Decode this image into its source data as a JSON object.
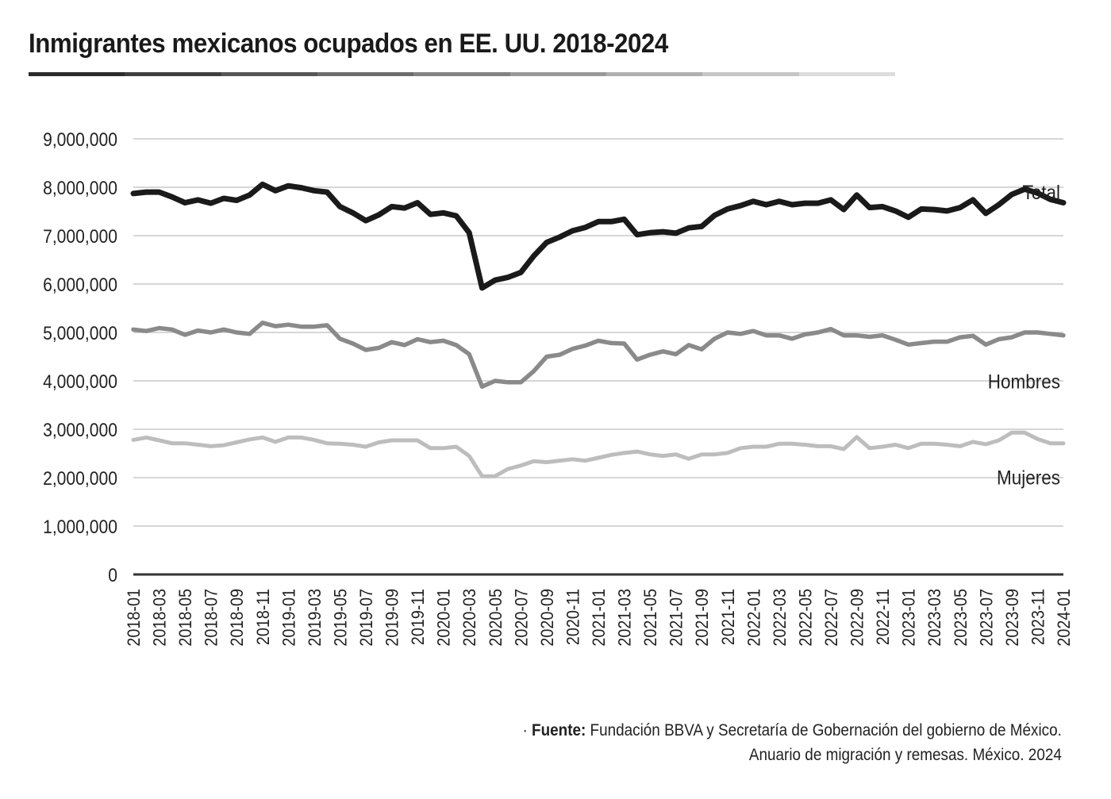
{
  "header": {
    "title": "Inmigrantes mexicanos ocupados en EE. UU. 2018-2024"
  },
  "colors": {
    "rule": [
      "#2b2b2b",
      "#3f3f3f",
      "#565656",
      "#6c6c6c",
      "#828282",
      "#999999",
      "#afafaf",
      "#c6c6c6",
      "#dcdcdc"
    ],
    "total": "#1a1a1a",
    "hombres": "#8a8a8a",
    "mujeres": "#bdbdbd",
    "grid": "#c8c8c8",
    "axis": "#333333"
  },
  "chart_data": {
    "type": "line",
    "ylim": [
      0,
      9000000
    ],
    "y_ticks": [
      "0",
      "1,000,000",
      "2,000,000",
      "3,000,000",
      "4,000,000",
      "5,000,000",
      "6,000,000",
      "7,000,000",
      "8,000,000",
      "9,000,000"
    ],
    "y_tick_values": [
      0,
      1000000,
      2000000,
      3000000,
      4000000,
      5000000,
      6000000,
      7000000,
      8000000,
      9000000
    ],
    "grid": true,
    "x": [
      "2018-01",
      "2018-02",
      "2018-03",
      "2018-04",
      "2018-05",
      "2018-06",
      "2018-07",
      "2018-08",
      "2018-09",
      "2018-10",
      "2018-11",
      "2018-12",
      "2019-01",
      "2019-02",
      "2019-03",
      "2019-04",
      "2019-05",
      "2019-06",
      "2019-07",
      "2019-08",
      "2019-09",
      "2019-10",
      "2019-11",
      "2019-12",
      "2020-01",
      "2020-02",
      "2020-03",
      "2020-04",
      "2020-05",
      "2020-06",
      "2020-07",
      "2020-08",
      "2020-09",
      "2020-10",
      "2020-11",
      "2020-12",
      "2021-01",
      "2021-02",
      "2021-03",
      "2021-04",
      "2021-05",
      "2021-06",
      "2021-07",
      "2021-08",
      "2021-09",
      "2021-10",
      "2021-11",
      "2021-12",
      "2022-01",
      "2022-02",
      "2022-03",
      "2022-04",
      "2022-05",
      "2022-06",
      "2022-07",
      "2022-08",
      "2022-09",
      "2022-10",
      "2022-11",
      "2022-12",
      "2023-01",
      "2023-02",
      "2023-03",
      "2023-04",
      "2023-05",
      "2023-06",
      "2023-07",
      "2023-08",
      "2023-09",
      "2023-10",
      "2023-11",
      "2023-12",
      "2024-01"
    ],
    "x_tick_labels": [
      "2018-01",
      "2018-03",
      "2018-05",
      "2018-07",
      "2018-09",
      "2018-11",
      "2019-01",
      "2019-03",
      "2019-05",
      "2019-07",
      "2019-09",
      "2019-11",
      "2020-01",
      "2020-03",
      "2020-05",
      "2020-07",
      "2020-09",
      "2020-11",
      "2021-01",
      "2021-03",
      "2021-05",
      "2021-07",
      "2021-09",
      "2021-11",
      "2022-01",
      "2022-03",
      "2022-05",
      "2022-07",
      "2022-09",
      "2022-11",
      "2023-01",
      "2023-03",
      "2023-05",
      "2023-07",
      "2023-09",
      "2023-11",
      "2024-01"
    ],
    "series": [
      {
        "name": "Total",
        "values": [
          7870000,
          7900000,
          7900000,
          7800000,
          7680000,
          7740000,
          7670000,
          7770000,
          7730000,
          7840000,
          8060000,
          7930000,
          8030000,
          7990000,
          7930000,
          7900000,
          7600000,
          7470000,
          7310000,
          7430000,
          7600000,
          7570000,
          7680000,
          7440000,
          7470000,
          7410000,
          7060000,
          5920000,
          6080000,
          6140000,
          6240000,
          6580000,
          6860000,
          6970000,
          7100000,
          7170000,
          7290000,
          7290000,
          7340000,
          7020000,
          7060000,
          7080000,
          7050000,
          7160000,
          7190000,
          7420000,
          7550000,
          7620000,
          7710000,
          7640000,
          7710000,
          7640000,
          7670000,
          7670000,
          7740000,
          7540000,
          7840000,
          7580000,
          7600000,
          7510000,
          7380000,
          7550000,
          7540000,
          7510000,
          7580000,
          7740000,
          7460000,
          7640000,
          7850000,
          7960000,
          7880000,
          7750000,
          7680000
        ]
      },
      {
        "name": "Hombres",
        "values": [
          5060000,
          5030000,
          5090000,
          5060000,
          4950000,
          5040000,
          5000000,
          5060000,
          5000000,
          4970000,
          5200000,
          5130000,
          5160000,
          5120000,
          5120000,
          5150000,
          4870000,
          4770000,
          4640000,
          4680000,
          4800000,
          4740000,
          4860000,
          4800000,
          4830000,
          4740000,
          4550000,
          3880000,
          4000000,
          3970000,
          3970000,
          4200000,
          4500000,
          4540000,
          4660000,
          4730000,
          4830000,
          4780000,
          4770000,
          4440000,
          4540000,
          4610000,
          4550000,
          4740000,
          4650000,
          4870000,
          5000000,
          4970000,
          5030000,
          4940000,
          4940000,
          4870000,
          4960000,
          5000000,
          5070000,
          4940000,
          4940000,
          4910000,
          4940000,
          4850000,
          4750000,
          4780000,
          4810000,
          4810000,
          4900000,
          4930000,
          4750000,
          4860000,
          4900000,
          5000000,
          5000000,
          4970000,
          4940000
        ]
      },
      {
        "name": "Mujeres",
        "values": [
          2780000,
          2830000,
          2770000,
          2710000,
          2710000,
          2680000,
          2650000,
          2670000,
          2730000,
          2790000,
          2830000,
          2740000,
          2830000,
          2830000,
          2780000,
          2710000,
          2700000,
          2680000,
          2640000,
          2730000,
          2770000,
          2770000,
          2770000,
          2610000,
          2610000,
          2640000,
          2450000,
          2030000,
          2030000,
          2180000,
          2250000,
          2340000,
          2320000,
          2350000,
          2380000,
          2350000,
          2410000,
          2470000,
          2510000,
          2540000,
          2480000,
          2450000,
          2480000,
          2390000,
          2480000,
          2480000,
          2510000,
          2610000,
          2640000,
          2640000,
          2700000,
          2700000,
          2680000,
          2650000,
          2650000,
          2590000,
          2840000,
          2610000,
          2640000,
          2680000,
          2610000,
          2700000,
          2700000,
          2680000,
          2650000,
          2740000,
          2690000,
          2770000,
          2930000,
          2930000,
          2800000,
          2710000,
          2710000
        ]
      }
    ],
    "series_labels": [
      "Total",
      "Hombres",
      "Mujeres"
    ]
  },
  "footer": {
    "bullet": "·",
    "source_label": "Fuente:",
    "source_line1": "Fundación BBVA y Secretaría de Gobernación del gobierno de México.",
    "source_line2": "Anuario de migración y remesas. México. 2024"
  }
}
